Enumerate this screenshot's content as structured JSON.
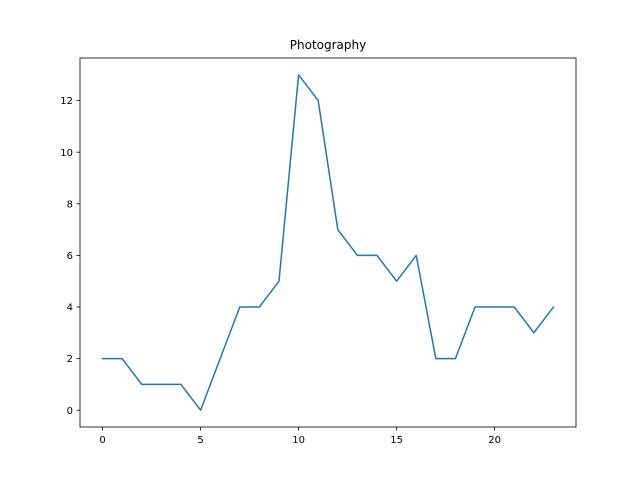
{
  "chart_data": {
    "type": "line",
    "title": "Photography",
    "xlabel": "",
    "ylabel": "",
    "x": [
      0,
      1,
      2,
      3,
      4,
      5,
      6,
      7,
      8,
      9,
      10,
      11,
      12,
      13,
      14,
      15,
      16,
      17,
      18,
      19,
      20,
      21,
      22,
      23
    ],
    "series": [
      {
        "values": [
          2,
          2,
          1,
          1,
          1,
          0,
          2,
          4,
          4,
          5,
          13,
          12,
          7,
          6,
          6,
          5,
          6,
          2,
          2,
          4,
          4,
          4,
          3,
          4
        ],
        "color": "#1f77b4"
      }
    ],
    "xlim": [
      -1.15,
      24.15
    ],
    "ylim": [
      -0.65,
      13.65
    ],
    "xticks": [
      0,
      5,
      10,
      15,
      20
    ],
    "yticks": [
      0,
      2,
      4,
      6,
      8,
      10,
      12
    ],
    "grid": false,
    "legend": "none"
  }
}
